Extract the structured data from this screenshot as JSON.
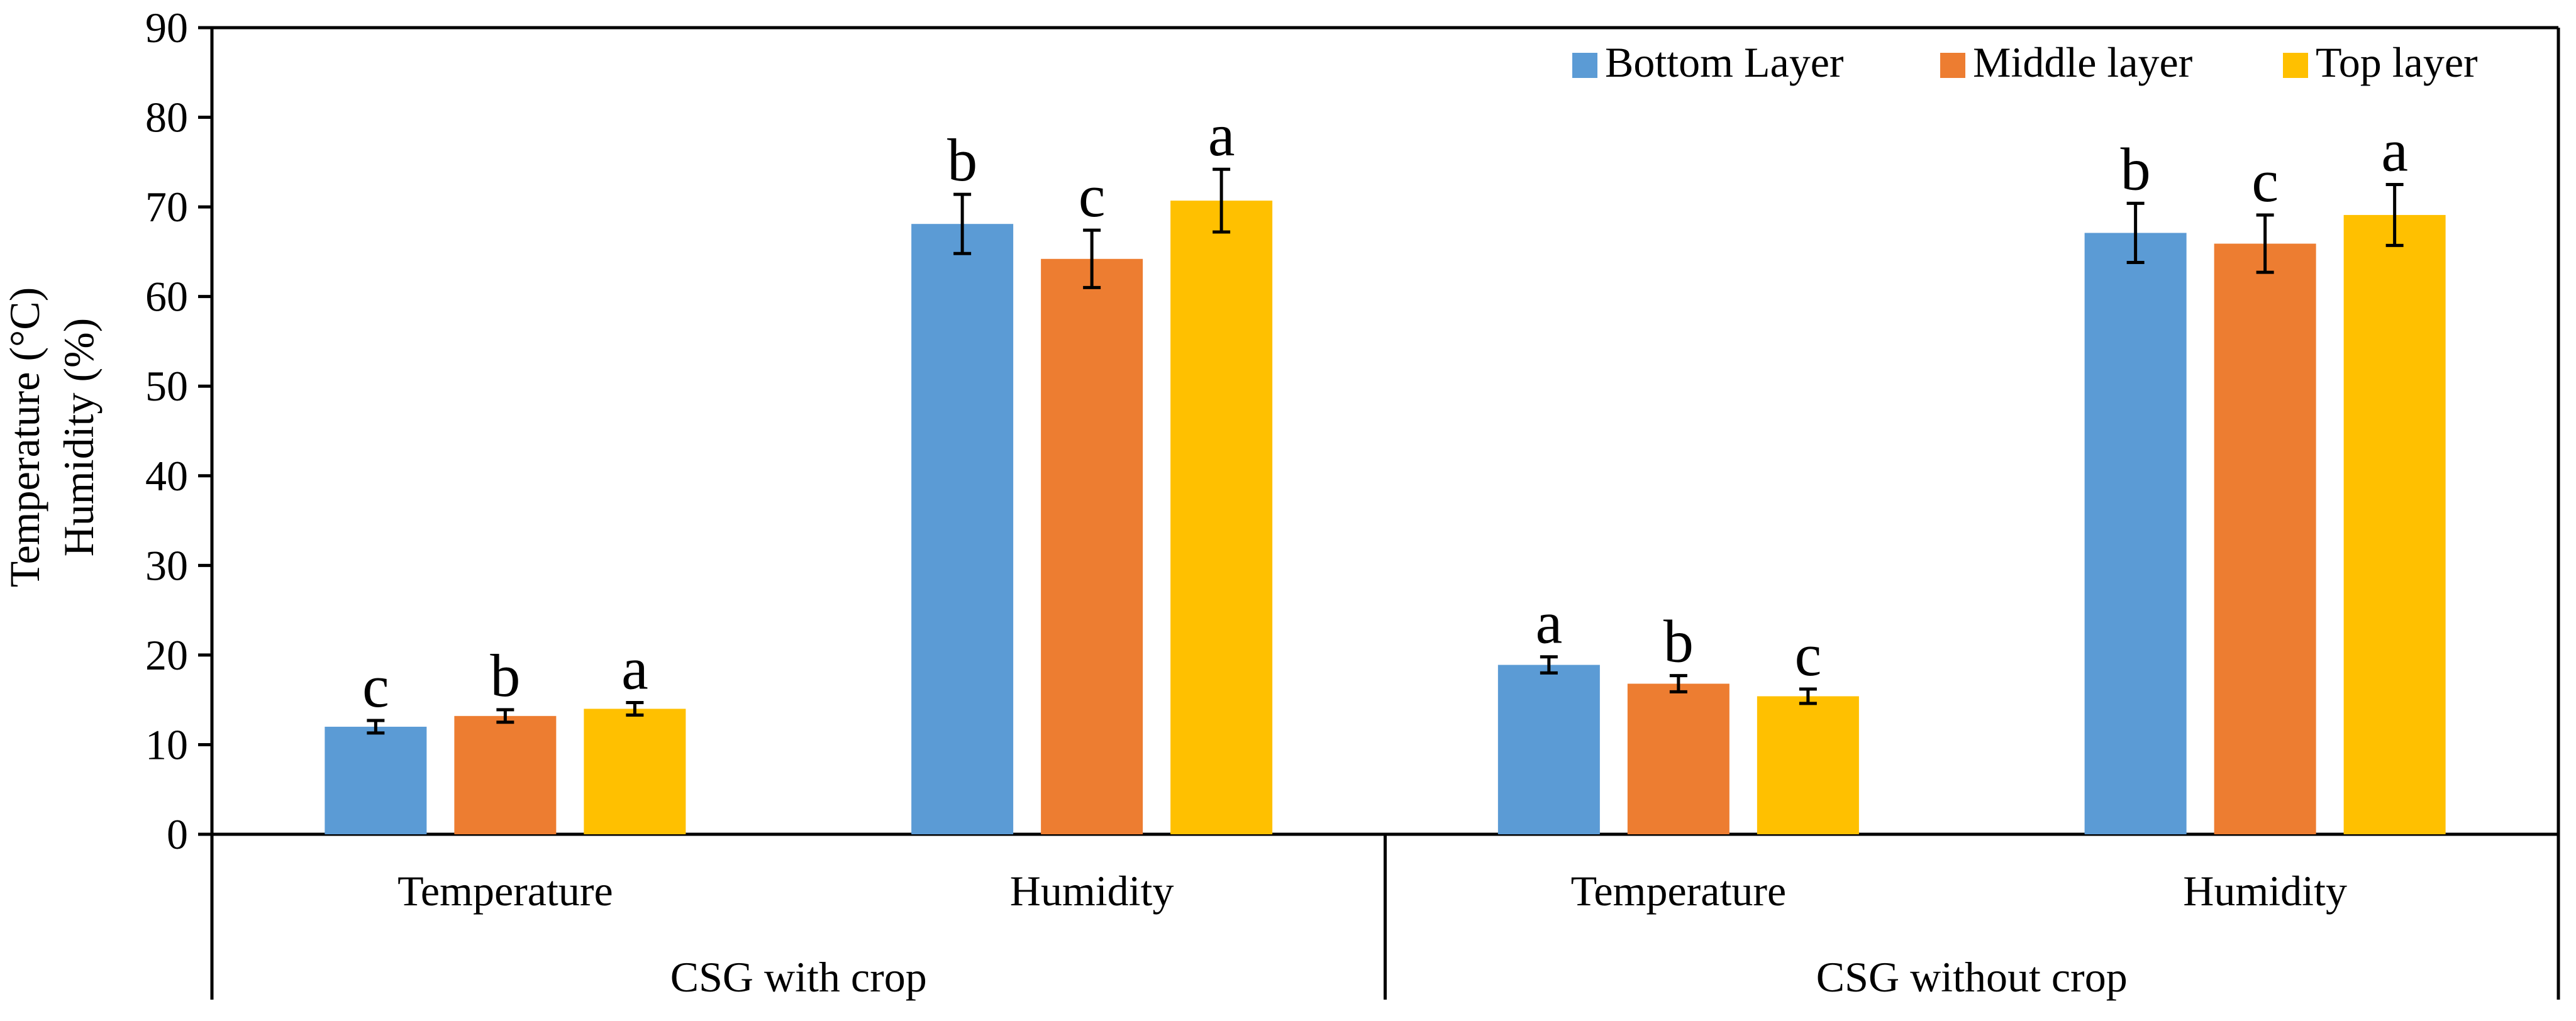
{
  "chart_data": {
    "type": "bar",
    "title": "",
    "xlabel": "",
    "ylabel_lines": [
      "Temperature (°C)",
      "Humidity (%)"
    ],
    "ylim": [
      0,
      90
    ],
    "yticks": [
      0,
      10,
      20,
      30,
      40,
      50,
      60,
      70,
      80,
      90
    ],
    "grid": false,
    "legend_position": "top-right",
    "groups": [
      {
        "label": "CSG with crop",
        "categories": [
          "Temperature",
          "Humidity"
        ]
      },
      {
        "label": "CSG without crop",
        "categories": [
          "Temperature",
          "Humidity"
        ]
      }
    ],
    "categories": [
      "Temperature",
      "Humidity",
      "Temperature",
      "Humidity"
    ],
    "series": [
      {
        "name": "Bottom Layer",
        "color": "#5B9BD5",
        "values": [
          12.0,
          68.1,
          18.9,
          67.1
        ],
        "errors": [
          0.7,
          3.3,
          0.9,
          3.3
        ],
        "letters": [
          "c",
          "b",
          "a",
          "b"
        ]
      },
      {
        "name": "Middle layer",
        "color": "#ED7D31",
        "values": [
          13.2,
          64.2,
          16.8,
          65.9
        ],
        "errors": [
          0.7,
          3.2,
          0.9,
          3.2
        ],
        "letters": [
          "b",
          "c",
          "b",
          "c"
        ]
      },
      {
        "name": "Top layer",
        "color": "#FFC000",
        "values": [
          14.0,
          70.7,
          15.4,
          69.1
        ],
        "errors": [
          0.7,
          3.5,
          0.8,
          3.4
        ],
        "letters": [
          "a",
          "a",
          "c",
          "a"
        ]
      }
    ]
  }
}
